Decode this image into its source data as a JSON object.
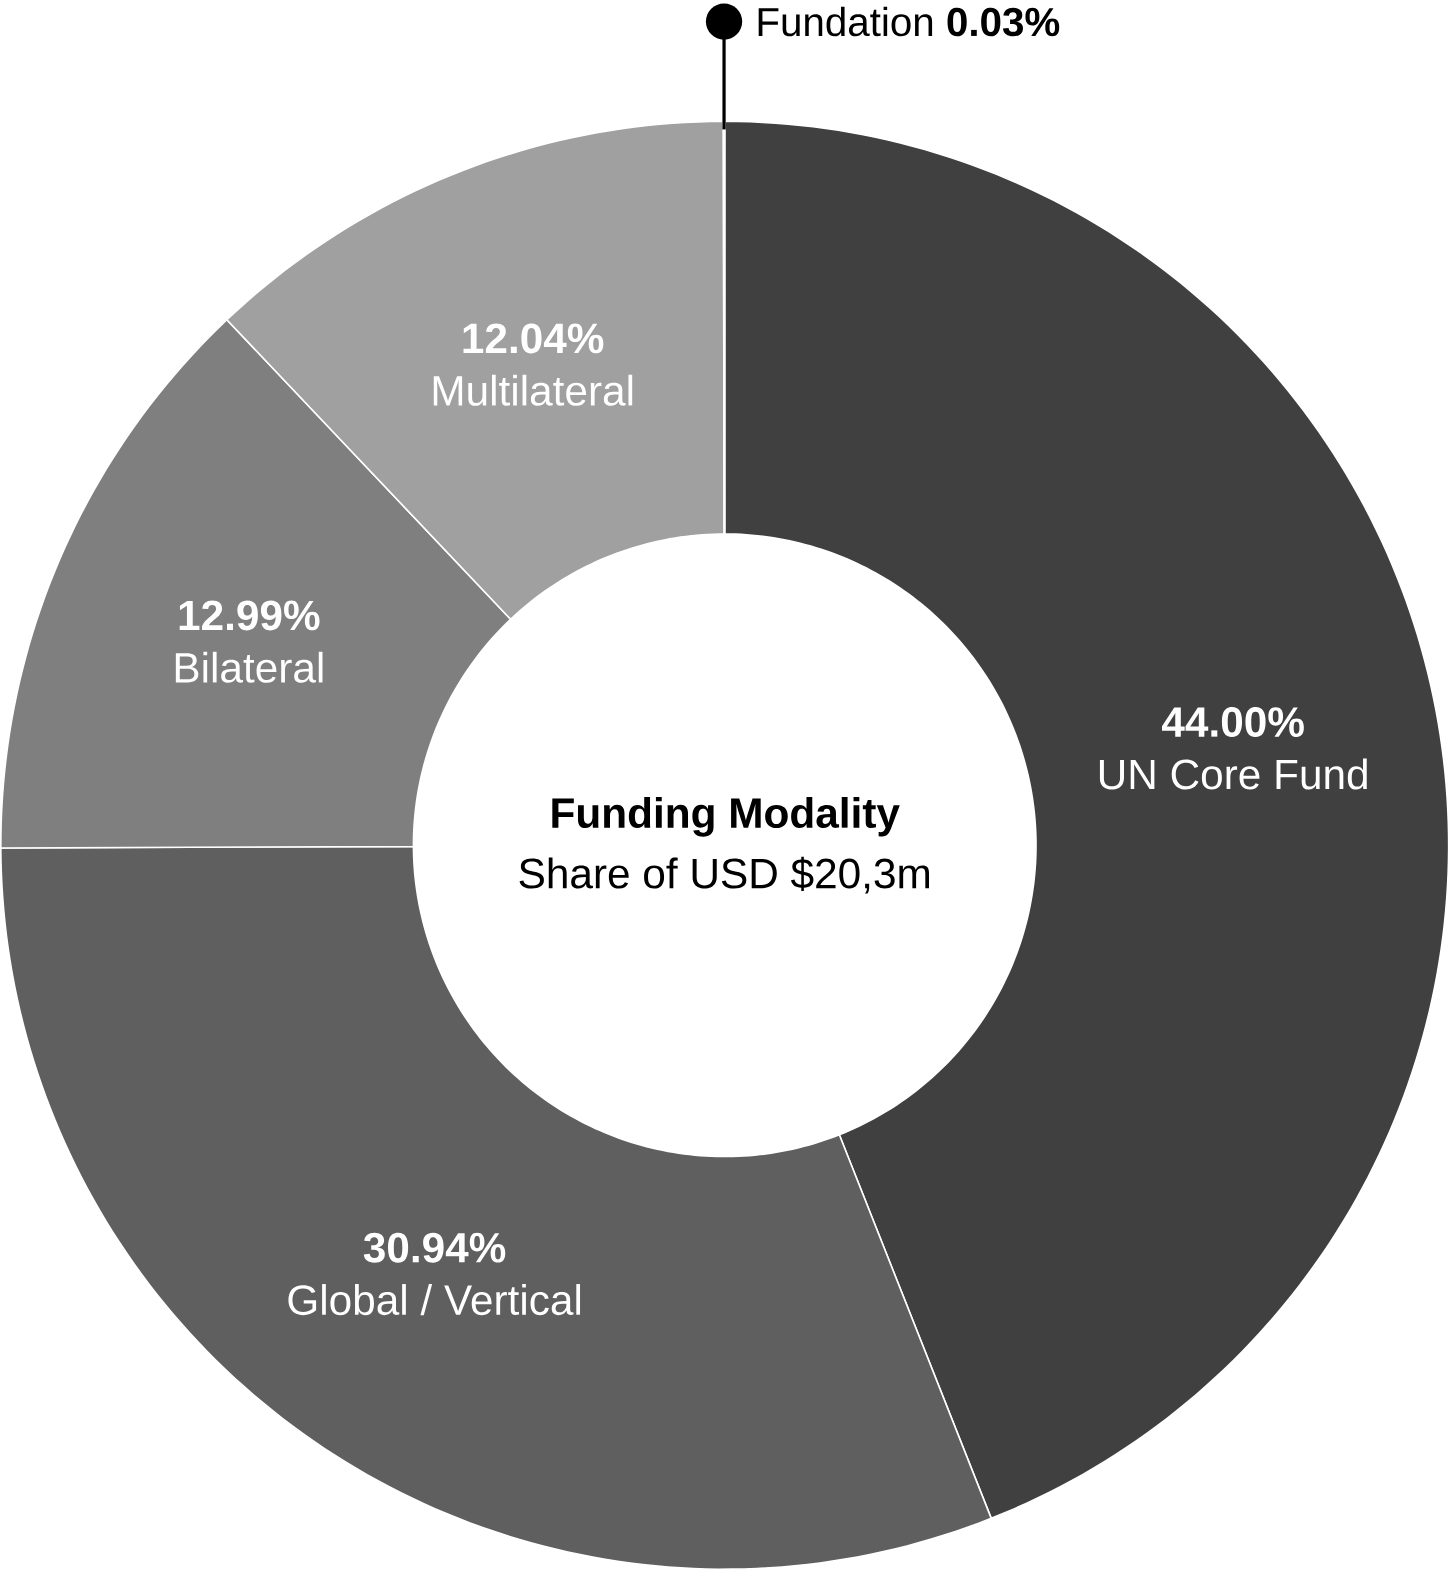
{
  "chart_data": {
    "type": "donut",
    "title": "Funding Modality",
    "subtitle": "Share of USD $20,3m",
    "categories": [
      "UN Core Fund",
      "Global / Vertical",
      "Bilateral",
      "Multilateral",
      "Fundation"
    ],
    "values": [
      44.0,
      30.94,
      12.99,
      12.04,
      0.03
    ],
    "value_labels": [
      "44.00%",
      "30.94%",
      "12.99%",
      "12.04%",
      "0.03%"
    ],
    "colors": [
      "#404040",
      "#5f5f5f",
      "#7f7f7f",
      "#a0a0a0",
      "#222222"
    ]
  }
}
